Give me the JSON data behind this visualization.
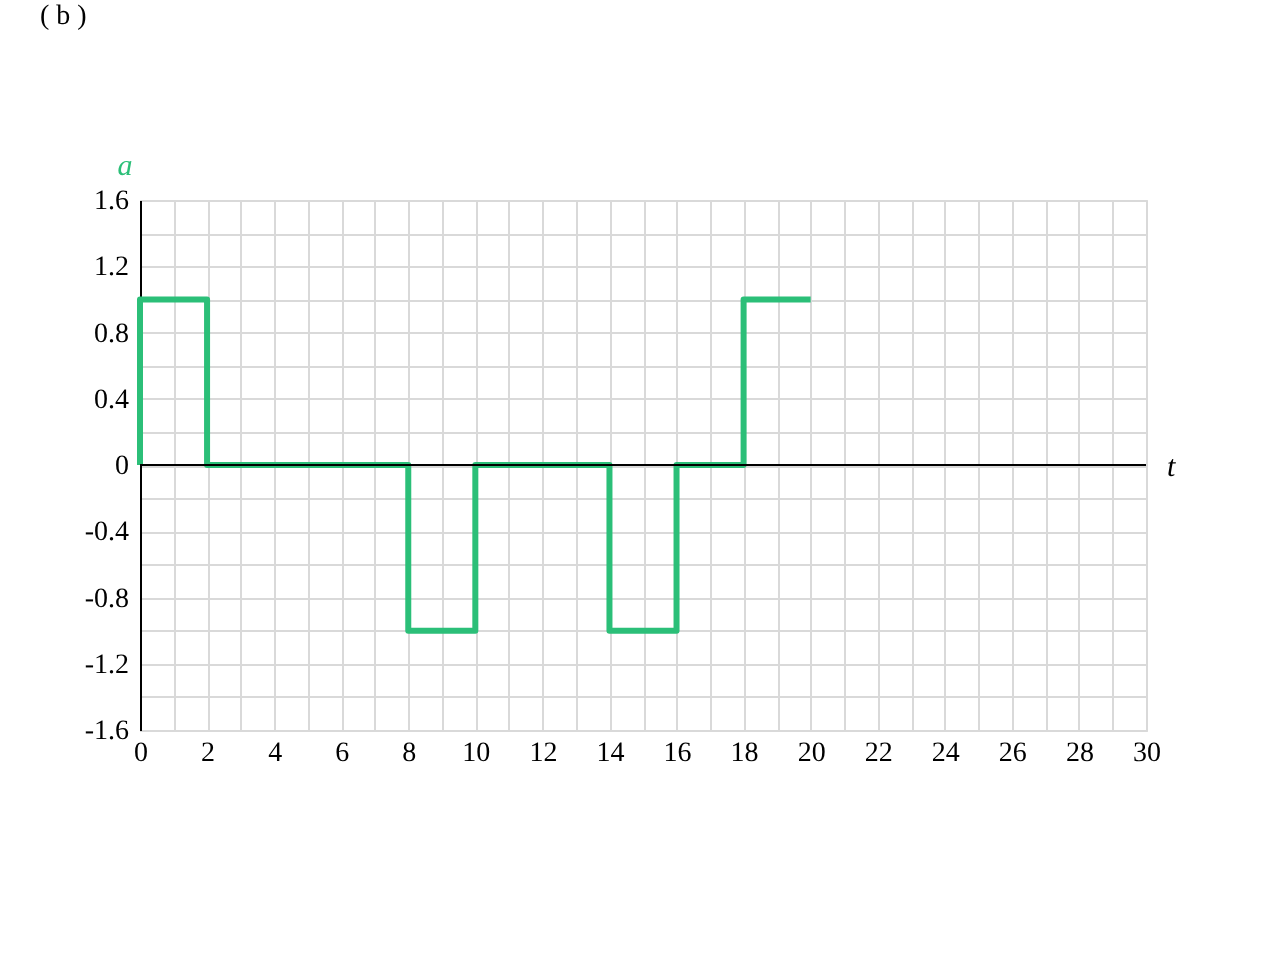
{
  "chart_data": {
    "type": "step",
    "title": "( b )",
    "xlabel": "t",
    "ylabel": "a",
    "x": [
      0,
      0,
      2,
      8,
      10,
      14,
      16,
      18,
      20
    ],
    "series": [
      {
        "color": "#2bbf78",
        "values": [
          0,
          1,
          0,
          -1,
          0,
          -1,
          0,
          1,
          1
        ]
      }
    ],
    "xlim": [
      0,
      30
    ],
    "ylim": [
      -1.6,
      1.6
    ],
    "xticks": [
      0,
      {
        "value": 1,
        "label": null
      },
      2,
      {
        "value": 3,
        "label": null
      },
      4,
      {
        "value": 5,
        "label": null
      },
      6,
      {
        "value": 7,
        "label": null
      },
      8,
      {
        "value": 9,
        "label": null
      },
      10,
      {
        "value": 11,
        "label": null
      },
      12,
      {
        "value": 13,
        "label": null
      },
      14,
      {
        "value": 15,
        "label": null
      },
      16,
      {
        "value": 17,
        "label": null
      },
      18,
      {
        "value": 19,
        "label": null
      },
      20,
      {
        "value": 21,
        "label": null
      },
      22,
      {
        "value": 23,
        "label": null
      },
      24,
      {
        "value": 25,
        "label": null
      },
      26,
      {
        "value": 27,
        "label": null
      },
      28,
      {
        "value": 29,
        "label": null
      },
      30
    ],
    "yticks": [
      -1.6,
      {
        "value": -1.4,
        "label": null
      },
      -1.2,
      {
        "value": -1.0,
        "label": null
      },
      -0.8,
      {
        "value": -0.6,
        "label": null
      },
      -0.4,
      {
        "value": -0.2,
        "label": null
      },
      0,
      {
        "value": 0.2,
        "label": null
      },
      0.4,
      {
        "value": 0.6,
        "label": null
      },
      0.8,
      {
        "value": 1.0,
        "label": null
      },
      1.2,
      {
        "value": 1.4,
        "label": null
      },
      1.6
    ],
    "ref_lines": [
      {
        "axis": "y",
        "value": 0,
        "color": "#000000"
      }
    ],
    "grid": true
  }
}
